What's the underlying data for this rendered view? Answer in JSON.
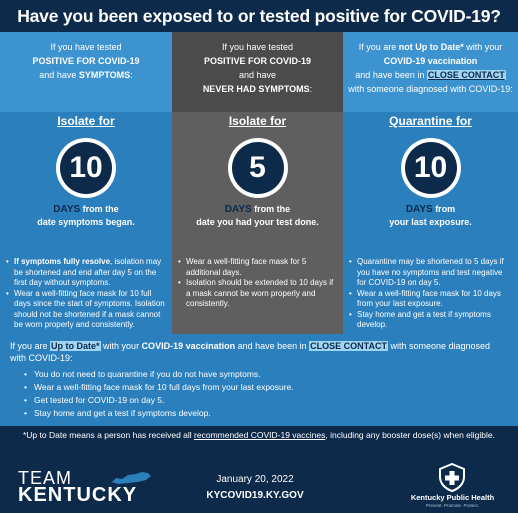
{
  "title": "Have you been exposed to or tested positive for COVID-19?",
  "columns": [
    {
      "cond_line1": "If you have tested",
      "cond_line2": "POSITIVE FOR COVID-19",
      "cond_line3a": "and have ",
      "cond_line3b": "SYMPTOMS",
      "cond_line3c": ":",
      "action": "Isolate for",
      "number": "10",
      "days_word": "DAYS",
      "days_rest": " from the",
      "days_line2": "date symptoms began.",
      "bullets": [
        "If symptoms fully resolve, isolation may be shortened and end after day 5 on the first day without symptoms.",
        "Wear a well-fitting face mask for 10 full days since the start of symptoms. Isolation should not be shortened if a mask cannot be worn properly and consistently."
      ]
    },
    {
      "cond_line1": "If you have tested",
      "cond_line2": "POSITIVE FOR COVID-19",
      "cond_line3": "and have",
      "cond_line4": "NEVER HAD SYMPTOMS",
      "cond_line4c": ":",
      "action": "Isolate for",
      "number": "5",
      "days_word": "DAYS",
      "days_rest": " from the",
      "days_line2": "date you had your test done.",
      "bullets": [
        "Wear a well-fitting face mask for 5 additional days.",
        "Isolation should be extended to 10 days if a mask cannot be worn properly and consistently."
      ]
    },
    {
      "cond_line1a": "If you are ",
      "cond_line1b": "not Up to Date*",
      "cond_line1c": " with your",
      "cond_line2": "COVID-19 vaccination",
      "cond_line3a": "and have been in ",
      "cond_line3b": "CLOSE CONTACT",
      "cond_line4": "with someone diagnosed with COVID-19:",
      "action": "Quarantine for",
      "number": "10",
      "days_word": "DAYS",
      "days_rest": " from",
      "days_line2": "your last exposure.",
      "bullets": [
        "Quarantine may be shortened to 5 days if you have no symptoms and test negative for COVID-19 on day 5.",
        "Wear a well-fitting face mask for 10 days from your last exposure.",
        "Stay home and get a test if symptoms develop."
      ]
    }
  ],
  "bottom": {
    "intro_a": "If you are ",
    "intro_b": "Up to Date*",
    "intro_c": "  with your ",
    "intro_d": "COVID-19 vaccination",
    "intro_e": " and have been in ",
    "intro_f": "CLOSE CONTACT",
    "intro_g": " with someone diagnosed with COVID-19:",
    "items": [
      "You do not need to quarantine if you do not have symptoms.",
      "Wear a well-fitting face mask for 10 full days from your last exposure.",
      "Get tested for COVID-19 on day 5.",
      "Stay home and get a test if symptoms develop."
    ]
  },
  "footnote_a": "*Up to Date means a person has received all ",
  "footnote_link": "recommended COVID-19 vaccines",
  "footnote_b": ", including any booster dose(s) when eligible.",
  "footer": {
    "team": "TEAM",
    "kentucky": "KENTUCKY",
    "date": "January 20, 2022",
    "website": "KYCOVID19.KY.GOV",
    "kph": "Kentucky Public Health",
    "kph_tagline": "Prevent. Promote. Protect."
  },
  "colors": {
    "navy": "#0d2a4a",
    "blue": "#2b7fbc",
    "gray": "#5f5f5f",
    "highlight": "#9fd4f2"
  }
}
